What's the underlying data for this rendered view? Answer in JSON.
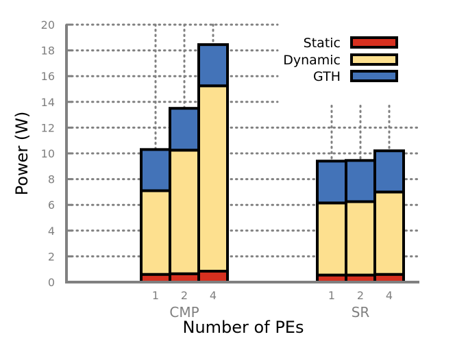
{
  "chart_data": {
    "type": "bar",
    "stacked": true,
    "xlabel": "Number of PEs",
    "ylabel": "Power (W)",
    "ylim": [
      0,
      20
    ],
    "yticks": [
      0,
      2,
      4,
      6,
      8,
      10,
      12,
      14,
      16,
      18,
      20
    ],
    "grid": true,
    "legend_position": "top-right",
    "groups": [
      {
        "label": "CMP",
        "categories": [
          "1",
          "2",
          "4"
        ]
      },
      {
        "label": "SR",
        "categories": [
          "1",
          "2",
          "4"
        ]
      }
    ],
    "series": [
      {
        "name": "Static",
        "color": "#d7301f",
        "values": [
          0.6,
          0.65,
          0.85,
          0.55,
          0.55,
          0.6
        ]
      },
      {
        "name": "Dynamic",
        "color": "#fde08f",
        "values": [
          6.5,
          9.6,
          14.4,
          5.6,
          5.7,
          6.4
        ]
      },
      {
        "name": "GTH",
        "color": "#4373b8",
        "values": [
          3.2,
          3.25,
          3.2,
          3.25,
          3.2,
          3.2
        ]
      }
    ]
  }
}
